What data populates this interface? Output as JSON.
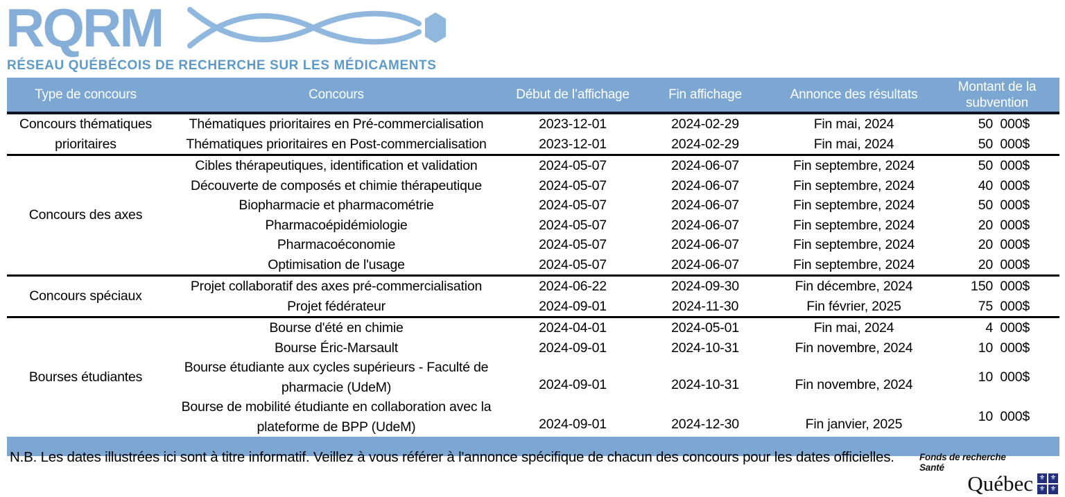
{
  "logo": {
    "text": "RQRM",
    "subtitle": "RÉSEAU QUÉBÉCOIS DE RECHERCHE SUR LES MÉDICAMENTS"
  },
  "colors": {
    "accent_blue": "#7ba7d2",
    "logo_blue": "#85afd8",
    "subtitle_blue": "#5e9ac8",
    "helix_blue": "#90b8de",
    "flag_blue": "#232e7d"
  },
  "table": {
    "headers": [
      "Type de concours",
      "Concours",
      "Début de l’affichage",
      "Fin affichage",
      "Annonce des résultats",
      "Montant de la subvention"
    ],
    "sections": [
      {
        "type": "Concours thématiques prioritaires",
        "rows": [
          {
            "concours": "Thématiques prioritaires en Pré-commercialisation",
            "debut": "2023-12-01",
            "fin": "2024-02-29",
            "annonce": "Fin mai, 2024",
            "montant": "50  000$"
          },
          {
            "concours": "Thématiques prioritaires en Post-commercialisation",
            "debut": "2023-12-01",
            "fin": "2024-02-29",
            "annonce": "Fin mai, 2024",
            "montant": "50  000$"
          }
        ]
      },
      {
        "type": "Concours des axes",
        "rows": [
          {
            "concours": "Cibles thérapeutiques, identification et validation",
            "debut": "2024-05-07",
            "fin": "2024-06-07",
            "annonce": "Fin septembre, 2024",
            "montant": "50  000$"
          },
          {
            "concours": "Découverte de composés et chimie thérapeutique",
            "debut": "2024-05-07",
            "fin": "2024-06-07",
            "annonce": "Fin septembre, 2024",
            "montant": "40  000$"
          },
          {
            "concours": "Biopharmacie et pharmacométrie",
            "debut": "2024-05-07",
            "fin": "2024-06-07",
            "annonce": "Fin septembre, 2024",
            "montant": "50  000$"
          },
          {
            "concours": "Pharmacoépidémiologie",
            "debut": "2024-05-07",
            "fin": "2024-06-07",
            "annonce": "Fin septembre, 2024",
            "montant": "20  000$"
          },
          {
            "concours": "Pharmacoéconomie",
            "debut": "2024-05-07",
            "fin": "2024-06-07",
            "annonce": "Fin septembre, 2024",
            "montant": "20  000$"
          },
          {
            "concours": "Optimisation de l'usage",
            "debut": "2024-05-07",
            "fin": "2024-06-07",
            "annonce": "Fin septembre, 2024",
            "montant": "20  000$"
          }
        ]
      },
      {
        "type": "Concours spéciaux",
        "rows": [
          {
            "concours": "Projet collaboratif des axes pré-commercialisation",
            "debut": "2024-06-22",
            "fin": "2024-09-30",
            "annonce": "Fin décembre, 2024",
            "montant": "150  000$"
          },
          {
            "concours": "Projet fédérateur",
            "debut": "2024-09-01",
            "fin": "2024-11-30",
            "annonce": "Fin février, 2025",
            "montant": "75  000$"
          }
        ]
      },
      {
        "type": "Bourses étudiantes",
        "rows": [
          {
            "concours": "Bourse d'été en chimie",
            "debut": "2024-04-01",
            "fin": "2024-05-01",
            "annonce": "Fin mai, 2024",
            "montant": "4  000$"
          },
          {
            "concours": "Bourse Éric-Marsault",
            "debut": "2024-09-01",
            "fin": "2024-10-31",
            "annonce": "Fin novembre, 2024",
            "montant": "10  000$"
          },
          {
            "concours": "Bourse étudiante aux cycles supérieurs - Faculté de pharmacie (UdeM)",
            "debut": "2024-09-01",
            "fin": "2024-10-31",
            "annonce": "Fin novembre, 2024",
            "montant": "10  000$",
            "two_line": true
          },
          {
            "concours": "Bourse de mobilité étudiante en collaboration avec la plateforme de BPP (UdeM)",
            "debut": "2024-09-01",
            "fin": "2024-12-30",
            "annonce": "Fin janvier, 2025",
            "montant": "10  000$",
            "two_line": true
          }
        ]
      }
    ]
  },
  "note": "N.B. Les dates illustrées ici sont à titre informatif. Veillez à vous référer à l'annonce spécifique de chacun des concours pour les dates officielles.",
  "footer_logo": {
    "line1": "Fonds de recherche",
    "line2": "Santé",
    "wordmark": "Québec",
    "flag_glyph": "⚜"
  }
}
